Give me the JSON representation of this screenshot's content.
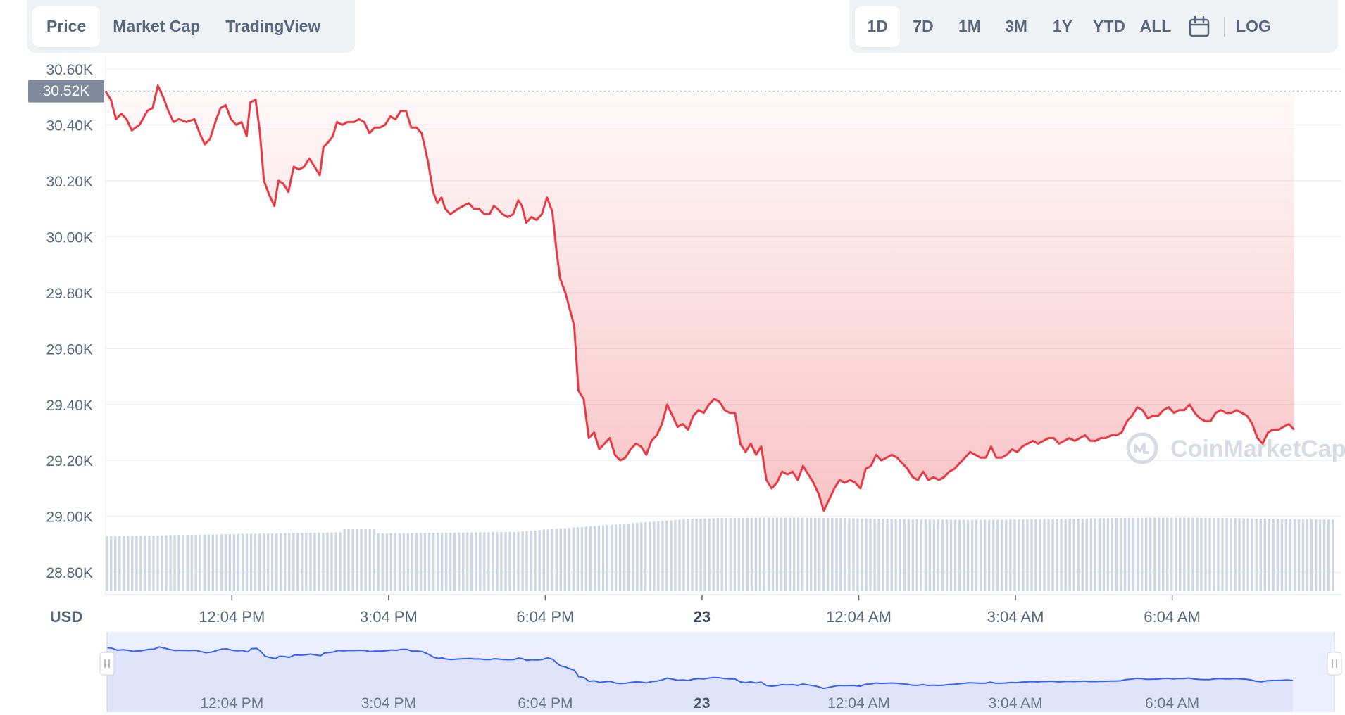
{
  "view_tabs": [
    {
      "label": "Price",
      "active": true
    },
    {
      "label": "Market Cap",
      "active": false
    },
    {
      "label": "TradingView",
      "active": false
    }
  ],
  "range_tabs": [
    {
      "label": "1D",
      "active": true
    },
    {
      "label": "7D",
      "active": false
    },
    {
      "label": "1M",
      "active": false
    },
    {
      "label": "3M",
      "active": false
    },
    {
      "label": "1Y",
      "active": false
    },
    {
      "label": "YTD",
      "active": false
    },
    {
      "label": "ALL",
      "active": false
    }
  ],
  "calendar_icon": "calendar-icon",
  "log_label": "LOG",
  "currency_label": "USD",
  "watermark": "CoinMarketCap",
  "colors": {
    "down": "#ea3943",
    "up": "#16c784",
    "volume": "#cfd6e4",
    "navigator_fill": "#e4e8fb",
    "navigator_line": "#3861fb",
    "price_tag": "#808a9d"
  },
  "chart_data": {
    "type": "line",
    "currency": "USD",
    "current_price_label": "30.52K",
    "opening_price": 30.52,
    "y_ticks": [
      "30.60K",
      "30.40K",
      "30.20K",
      "30.00K",
      "29.80K",
      "29.60K",
      "29.40K",
      "29.20K",
      "29.00K",
      "28.80K"
    ],
    "y_range": [
      28.72,
      30.645
    ],
    "x_range": [
      9.65,
      33.2
    ],
    "x_ticks": [
      {
        "label": "12:04 PM",
        "hour": 12.067
      },
      {
        "label": "3:04 PM",
        "hour": 15.067
      },
      {
        "label": "6:04 PM",
        "hour": 18.067
      },
      {
        "label": "23",
        "hour": 21.067,
        "bold": true
      },
      {
        "label": "12:04 AM",
        "hour": 24.067
      },
      {
        "label": "3:04 AM",
        "hour": 27.067
      },
      {
        "label": "6:04 AM",
        "hour": 30.067
      }
    ],
    "series": [
      {
        "values": [
          [
            9.65,
            30.52
          ],
          [
            9.75,
            30.49
          ],
          [
            9.85,
            30.42
          ],
          [
            9.95,
            30.44
          ],
          [
            10.05,
            30.42
          ],
          [
            10.15,
            30.38
          ],
          [
            10.3,
            30.4
          ],
          [
            10.45,
            30.45
          ],
          [
            10.55,
            30.46
          ],
          [
            10.65,
            30.54
          ],
          [
            10.75,
            30.5
          ],
          [
            10.85,
            30.45
          ],
          [
            10.95,
            30.41
          ],
          [
            11.05,
            30.42
          ],
          [
            11.2,
            30.41
          ],
          [
            11.35,
            30.42
          ],
          [
            11.45,
            30.37
          ],
          [
            11.55,
            30.33
          ],
          [
            11.65,
            30.35
          ],
          [
            11.75,
            30.41
          ],
          [
            11.85,
            30.46
          ],
          [
            11.95,
            30.47
          ],
          [
            12.05,
            30.42
          ],
          [
            12.15,
            30.4
          ],
          [
            12.25,
            30.41
          ],
          [
            12.35,
            30.36
          ],
          [
            12.42,
            30.48
          ],
          [
            12.52,
            30.49
          ],
          [
            12.6,
            30.38
          ],
          [
            12.68,
            30.2
          ],
          [
            12.78,
            30.15
          ],
          [
            12.88,
            30.11
          ],
          [
            12.96,
            30.2
          ],
          [
            13.05,
            30.19
          ],
          [
            13.15,
            30.16
          ],
          [
            13.25,
            30.25
          ],
          [
            13.35,
            30.24
          ],
          [
            13.45,
            30.25
          ],
          [
            13.55,
            30.28
          ],
          [
            13.65,
            30.25
          ],
          [
            13.75,
            30.22
          ],
          [
            13.82,
            30.32
          ],
          [
            13.92,
            30.34
          ],
          [
            14.0,
            30.36
          ],
          [
            14.08,
            30.41
          ],
          [
            14.18,
            30.4
          ],
          [
            14.28,
            30.41
          ],
          [
            14.4,
            30.41
          ],
          [
            14.5,
            30.42
          ],
          [
            14.6,
            30.41
          ],
          [
            14.7,
            30.37
          ],
          [
            14.8,
            30.39
          ],
          [
            14.9,
            30.39
          ],
          [
            15.0,
            30.4
          ],
          [
            15.1,
            30.43
          ],
          [
            15.2,
            30.42
          ],
          [
            15.3,
            30.45
          ],
          [
            15.4,
            30.45
          ],
          [
            15.5,
            30.39
          ],
          [
            15.6,
            30.39
          ],
          [
            15.7,
            30.37
          ],
          [
            15.82,
            30.27
          ],
          [
            15.92,
            30.16
          ],
          [
            16.0,
            30.12
          ],
          [
            16.08,
            30.14
          ],
          [
            16.15,
            30.1
          ],
          [
            16.25,
            30.08
          ],
          [
            16.4,
            30.1
          ],
          [
            16.5,
            30.11
          ],
          [
            16.6,
            30.12
          ],
          [
            16.7,
            30.1
          ],
          [
            16.8,
            30.1
          ],
          [
            16.9,
            30.08
          ],
          [
            17.0,
            30.08
          ],
          [
            17.08,
            30.11
          ],
          [
            17.15,
            30.1
          ],
          [
            17.25,
            30.08
          ],
          [
            17.35,
            30.07
          ],
          [
            17.45,
            30.08
          ],
          [
            17.55,
            30.13
          ],
          [
            17.62,
            30.11
          ],
          [
            17.7,
            30.05
          ],
          [
            17.8,
            30.07
          ],
          [
            17.9,
            30.06
          ],
          [
            18.0,
            30.08
          ],
          [
            18.1,
            30.14
          ],
          [
            18.2,
            30.09
          ],
          [
            18.28,
            29.95
          ],
          [
            18.35,
            29.85
          ],
          [
            18.45,
            29.8
          ],
          [
            18.55,
            29.73
          ],
          [
            18.62,
            29.68
          ],
          [
            18.7,
            29.45
          ],
          [
            18.8,
            29.42
          ],
          [
            18.9,
            29.28
          ],
          [
            19.0,
            29.3
          ],
          [
            19.1,
            29.24
          ],
          [
            19.2,
            29.26
          ],
          [
            19.3,
            29.28
          ],
          [
            19.4,
            29.22
          ],
          [
            19.5,
            29.2
          ],
          [
            19.6,
            29.21
          ],
          [
            19.7,
            29.24
          ],
          [
            19.8,
            29.26
          ],
          [
            19.9,
            29.25
          ],
          [
            20.0,
            29.22
          ],
          [
            20.1,
            29.27
          ],
          [
            20.2,
            29.29
          ],
          [
            20.3,
            29.33
          ],
          [
            20.4,
            29.4
          ],
          [
            20.5,
            29.36
          ],
          [
            20.6,
            29.32
          ],
          [
            20.7,
            29.33
          ],
          [
            20.8,
            29.31
          ],
          [
            20.9,
            29.36
          ],
          [
            21.0,
            29.38
          ],
          [
            21.1,
            29.37
          ],
          [
            21.2,
            29.4
          ],
          [
            21.3,
            29.42
          ],
          [
            21.4,
            29.41
          ],
          [
            21.5,
            29.38
          ],
          [
            21.6,
            29.37
          ],
          [
            21.7,
            29.37
          ],
          [
            21.8,
            29.26
          ],
          [
            21.9,
            29.23
          ],
          [
            22.0,
            29.26
          ],
          [
            22.1,
            29.22
          ],
          [
            22.2,
            29.25
          ],
          [
            22.3,
            29.13
          ],
          [
            22.4,
            29.1
          ],
          [
            22.5,
            29.12
          ],
          [
            22.6,
            29.16
          ],
          [
            22.7,
            29.15
          ],
          [
            22.8,
            29.16
          ],
          [
            22.9,
            29.13
          ],
          [
            23.0,
            29.18
          ],
          [
            23.1,
            29.15
          ],
          [
            23.2,
            29.12
          ],
          [
            23.3,
            29.08
          ],
          [
            23.4,
            29.02
          ],
          [
            23.5,
            29.06
          ],
          [
            23.6,
            29.1
          ],
          [
            23.7,
            29.13
          ],
          [
            23.8,
            29.12
          ],
          [
            23.9,
            29.13
          ],
          [
            24.0,
            29.12
          ],
          [
            24.1,
            29.1
          ],
          [
            24.2,
            29.17
          ],
          [
            24.3,
            29.18
          ],
          [
            24.4,
            29.22
          ],
          [
            24.5,
            29.2
          ],
          [
            24.6,
            29.21
          ],
          [
            24.7,
            29.22
          ],
          [
            24.8,
            29.21
          ],
          [
            24.9,
            29.19
          ],
          [
            25.0,
            29.17
          ],
          [
            25.1,
            29.14
          ],
          [
            25.2,
            29.13
          ],
          [
            25.3,
            29.16
          ],
          [
            25.4,
            29.13
          ],
          [
            25.5,
            29.14
          ],
          [
            25.6,
            29.13
          ],
          [
            25.7,
            29.14
          ],
          [
            25.8,
            29.16
          ],
          [
            25.9,
            29.17
          ],
          [
            26.0,
            29.19
          ],
          [
            26.1,
            29.21
          ],
          [
            26.2,
            29.23
          ],
          [
            26.3,
            29.22
          ],
          [
            26.4,
            29.21
          ],
          [
            26.5,
            29.21
          ],
          [
            26.6,
            29.25
          ],
          [
            26.7,
            29.21
          ],
          [
            26.8,
            29.21
          ],
          [
            26.9,
            29.22
          ],
          [
            27.0,
            29.24
          ],
          [
            27.1,
            29.23
          ],
          [
            27.2,
            29.25
          ],
          [
            27.3,
            29.26
          ],
          [
            27.4,
            29.27
          ],
          [
            27.5,
            29.26
          ],
          [
            27.6,
            29.27
          ],
          [
            27.7,
            29.28
          ],
          [
            27.8,
            29.28
          ],
          [
            27.9,
            29.26
          ],
          [
            28.0,
            29.27
          ],
          [
            28.1,
            29.28
          ],
          [
            28.2,
            29.27
          ],
          [
            28.3,
            29.28
          ],
          [
            28.4,
            29.29
          ],
          [
            28.5,
            29.27
          ],
          [
            28.6,
            29.27
          ],
          [
            28.7,
            29.28
          ],
          [
            28.8,
            29.28
          ],
          [
            28.9,
            29.29
          ],
          [
            29.0,
            29.29
          ],
          [
            29.1,
            29.3
          ],
          [
            29.2,
            29.34
          ],
          [
            29.3,
            29.36
          ],
          [
            29.4,
            29.39
          ],
          [
            29.5,
            29.38
          ],
          [
            29.6,
            29.35
          ],
          [
            29.7,
            29.36
          ],
          [
            29.8,
            29.36
          ],
          [
            29.9,
            29.38
          ],
          [
            30.0,
            29.39
          ],
          [
            30.1,
            29.37
          ],
          [
            30.2,
            29.38
          ],
          [
            30.3,
            29.38
          ],
          [
            30.4,
            29.4
          ],
          [
            30.5,
            29.37
          ],
          [
            30.6,
            29.35
          ],
          [
            30.7,
            29.34
          ],
          [
            30.8,
            29.34
          ],
          [
            30.9,
            29.37
          ],
          [
            31.0,
            29.38
          ],
          [
            31.1,
            29.37
          ],
          [
            31.2,
            29.37
          ],
          [
            31.3,
            29.38
          ],
          [
            31.4,
            29.37
          ],
          [
            31.5,
            29.36
          ],
          [
            31.6,
            29.33
          ],
          [
            31.7,
            29.28
          ],
          [
            31.8,
            29.26
          ],
          [
            31.9,
            29.3
          ],
          [
            32.0,
            29.31
          ],
          [
            32.1,
            29.31
          ],
          [
            32.2,
            29.32
          ],
          [
            32.3,
            29.33
          ],
          [
            32.4,
            29.31
          ]
        ]
      }
    ],
    "volume_area": "grey volume bars along bottom, roughly flat"
  }
}
